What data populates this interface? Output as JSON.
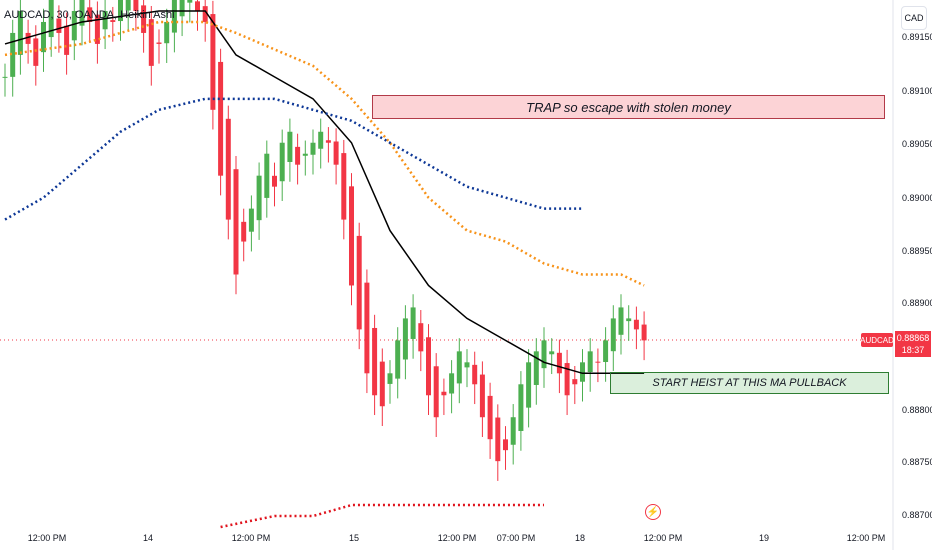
{
  "header": {
    "title": "AUDCAD, 30, OANDA, Heikin Ashi",
    "currency": "CAD"
  },
  "price_axis": {
    "labels": [
      "0.89150",
      "0.89100",
      "0.89050",
      "0.89000",
      "0.88950",
      "0.88900",
      "0.88800",
      "0.88750",
      "0.88700"
    ]
  },
  "time_axis": {
    "labels": [
      "12:00 PM",
      "14",
      "12:00 PM",
      "15",
      "12:00 PM",
      "07:00 PM",
      "18",
      "12:00 PM",
      "19",
      "12:00 PM"
    ]
  },
  "last_price": {
    "symbol": "AUDCAD",
    "price": "0.88868",
    "countdown": "18:37",
    "color": "#f23645"
  },
  "annotations": {
    "trap": "TRAP so escape with stolen money",
    "heist": "START HEIST AT THIS MA PULLBACK"
  },
  "icons": {
    "bolt": "lightning-bolt-icon"
  },
  "colors": {
    "bull": "#26a69a",
    "bull_candle": "#4caf50",
    "bear": "#f23645",
    "ma_fast": "#000000",
    "ma_mid": "#f7931a",
    "ma_slow": "#0d3796",
    "ma_long": "#e0141e"
  },
  "chart_data": {
    "type": "candlestick",
    "symbol": "AUDCAD",
    "timeframe": "30",
    "source": "OANDA",
    "style": "Heikin Ashi",
    "ylim": [
      0.8869,
      0.8918
    ],
    "x_ticks": [
      "12:00 PM",
      "14",
      "12:00 PM",
      "15",
      "12:00 PM",
      "07:00 PM",
      "18",
      "12:00 PM",
      "19",
      "12:00 PM"
    ],
    "y_ticks": [
      0.8915,
      0.891,
      0.8905,
      0.89,
      0.8895,
      0.889,
      0.888,
      0.8875,
      0.887
    ],
    "last_price": 0.88868,
    "candle_closes": [
      0.8911,
      0.8915,
      0.8917,
      0.8914,
      0.8912,
      0.8916,
      0.8918,
      0.8915,
      0.8913,
      0.8917,
      0.8919,
      0.8916,
      0.8914,
      0.8917,
      0.8916,
      0.8918,
      0.8919,
      0.8917,
      0.8915,
      0.8912,
      0.8914,
      0.8916,
      0.8918,
      0.8919,
      0.8918,
      0.8917,
      0.8916,
      0.8908,
      0.8902,
      0.8898,
      0.8893,
      0.8896,
      0.8899,
      0.8902,
      0.8904,
      0.8901,
      0.8905,
      0.8906,
      0.8903,
      0.8904,
      0.8905,
      0.8906,
      0.8905,
      0.8903,
      0.8898,
      0.8892,
      0.8888,
      0.8884,
      0.8882,
      0.8881,
      0.8884,
      0.8887,
      0.8889,
      0.889,
      0.8886,
      0.8882,
      0.888,
      0.8882,
      0.8884,
      0.8886,
      0.8885,
      0.8883,
      0.888,
      0.8878,
      0.8876,
      0.8877,
      0.888,
      0.8883,
      0.8885,
      0.8886,
      0.8887,
      0.8886,
      0.8884,
      0.8882,
      0.8883,
      0.8885,
      0.8886,
      0.8885,
      0.8887,
      0.8889,
      0.889,
      0.8889,
      0.8888,
      0.8887
    ],
    "series": [
      {
        "name": "MA fast",
        "color": "#000000",
        "points": [
          [
            0,
            0.8914
          ],
          [
            10,
            0.8916
          ],
          [
            20,
            0.8917
          ],
          [
            26,
            0.8917
          ],
          [
            30,
            0.8913
          ],
          [
            35,
            0.8911
          ],
          [
            40,
            0.8909
          ],
          [
            45,
            0.8905
          ],
          [
            50,
            0.8897
          ],
          [
            55,
            0.8892
          ],
          [
            60,
            0.8889
          ],
          [
            65,
            0.8887
          ],
          [
            70,
            0.8885
          ],
          [
            75,
            0.8884
          ],
          [
            80,
            0.8884
          ],
          [
            83,
            0.8884
          ]
        ]
      },
      {
        "name": "MA mid",
        "color": "#f7931a",
        "points": [
          [
            0,
            0.8913
          ],
          [
            10,
            0.8914
          ],
          [
            20,
            0.8916
          ],
          [
            26,
            0.8916
          ],
          [
            30,
            0.8915
          ],
          [
            40,
            0.8912
          ],
          [
            45,
            0.8909
          ],
          [
            50,
            0.8905
          ],
          [
            55,
            0.89
          ],
          [
            60,
            0.8897
          ],
          [
            65,
            0.8896
          ],
          [
            70,
            0.8894
          ],
          [
            75,
            0.8893
          ],
          [
            80,
            0.8893
          ],
          [
            83,
            0.8892
          ]
        ]
      },
      {
        "name": "MA slow",
        "color": "#0d3796",
        "points": [
          [
            0,
            0.8898
          ],
          [
            5,
            0.89
          ],
          [
            10,
            0.8903
          ],
          [
            15,
            0.8906
          ],
          [
            20,
            0.8908
          ],
          [
            26,
            0.8909
          ],
          [
            30,
            0.8909
          ],
          [
            35,
            0.8909
          ],
          [
            40,
            0.8908
          ],
          [
            45,
            0.8907
          ],
          [
            50,
            0.8905
          ],
          [
            55,
            0.8903
          ],
          [
            60,
            0.8901
          ],
          [
            65,
            0.89
          ],
          [
            70,
            0.8899
          ],
          [
            75,
            0.8899
          ]
        ]
      },
      {
        "name": "MA long",
        "color": "#e0141e",
        "points": [
          [
            28,
            0.887
          ],
          [
            35,
            0.8871
          ],
          [
            40,
            0.8871
          ],
          [
            45,
            0.8872
          ],
          [
            50,
            0.8872
          ],
          [
            55,
            0.8872
          ],
          [
            60,
            0.8872
          ],
          [
            65,
            0.8872
          ],
          [
            70,
            0.8872
          ]
        ]
      }
    ]
  }
}
